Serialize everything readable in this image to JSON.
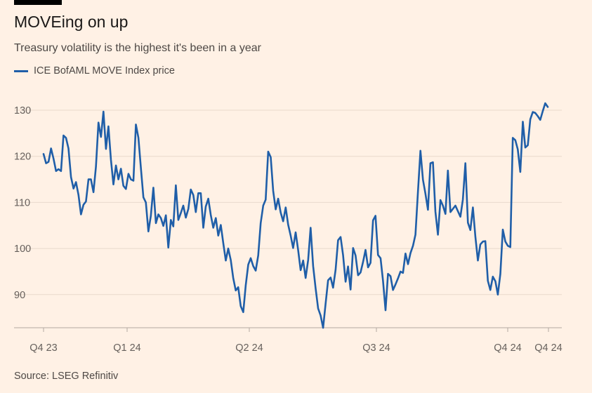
{
  "colors": {
    "background": "#fff1e5",
    "series": "#1f5ea8",
    "grid": "#e8d9cc",
    "axis": "#b3a9a1"
  },
  "chart_data": {
    "type": "line",
    "title": "MOVEing on up",
    "subtitle": "Treasury volatility is the highest it's been in a year",
    "source": "Source: LSEG Refinitiv",
    "legend_position": "top-left",
    "series": [
      {
        "name": "ICE BofAML MOVE Index price",
        "values": [
          120.5,
          118.5,
          118.8,
          121.7,
          119.5,
          116.8,
          117.2,
          116.8,
          124.5,
          124.0,
          121.7,
          115.5,
          113.0,
          114.4,
          111.6,
          107.4,
          109.5,
          110.2,
          115.0,
          115.0,
          112.2,
          117.7,
          127.3,
          124.2,
          129.7,
          121.6,
          126.5,
          119.2,
          113.9,
          118.0,
          115.0,
          117.3,
          113.6,
          112.9,
          116.2,
          115.0,
          114.7,
          126.9,
          124.0,
          117.5,
          111.1,
          110.0,
          103.7,
          107.1,
          113.2,
          105.5,
          107.4,
          106.6,
          104.9,
          107.2,
          100.2,
          106.2,
          104.8,
          113.7,
          106.2,
          107.7,
          109.3,
          106.7,
          108.6,
          112.8,
          111.6,
          107.9,
          112.0,
          112.0,
          104.5,
          109.1,
          110.8,
          107.3,
          104.5,
          106.6,
          102.8,
          105.1,
          101.2,
          97.4,
          100.0,
          97.5,
          93.6,
          90.9,
          91.6,
          87.5,
          86.2,
          92.0,
          96.5,
          97.9,
          96.2,
          95.2,
          98.5,
          105.5,
          109.3,
          110.6,
          121.0,
          119.8,
          112.5,
          108.5,
          110.8,
          107.8,
          105.9,
          108.9,
          105.2,
          102.8,
          100.1,
          103.5,
          99.6,
          95.3,
          97.4,
          93.6,
          97.5,
          104.5,
          96.2,
          91.4,
          87.0,
          85.5,
          82.8,
          88.1,
          93.1,
          93.7,
          91.5,
          95.4,
          101.8,
          102.5,
          98.6,
          92.8,
          96.1,
          91.1,
          100.1,
          98.5,
          94.2,
          94.8,
          97.1,
          99.7,
          95.9,
          96.9,
          106.1,
          107.1,
          98.6,
          97.9,
          93.0,
          86.6,
          94.5,
          94.0,
          91.0,
          92.2,
          93.5,
          95.0,
          94.7,
          98.9,
          96.6,
          99.0,
          100.6,
          103.0,
          112.4,
          121.2,
          114.9,
          111.9,
          108.4,
          118.5,
          118.7,
          108.0,
          103.0,
          110.5,
          109.3,
          107.5,
          116.9,
          107.9,
          108.6,
          109.3,
          108.1,
          106.9,
          110.6,
          118.5,
          105.6,
          104.0,
          108.9,
          102.6,
          97.4,
          100.9,
          101.5,
          101.6,
          93.0,
          91.0,
          93.9,
          92.9,
          90.0,
          94.5,
          104.1,
          101.5,
          100.6,
          100.3,
          124.0,
          123.5,
          121.5,
          116.6,
          127.5,
          121.9,
          122.4,
          128.0,
          129.6,
          129.4,
          128.7,
          127.9,
          129.8,
          131.5,
          130.7
        ]
      }
    ],
    "x_ticks": [
      "Q4 23",
      "Q1 24",
      "Q2 24",
      "Q3 24",
      "Q4 24",
      "Q4 24"
    ],
    "y_ticks": [
      90,
      100,
      110,
      120,
      130
    ],
    "ylim": [
      82,
      135
    ],
    "xlabel": "",
    "ylabel": ""
  }
}
